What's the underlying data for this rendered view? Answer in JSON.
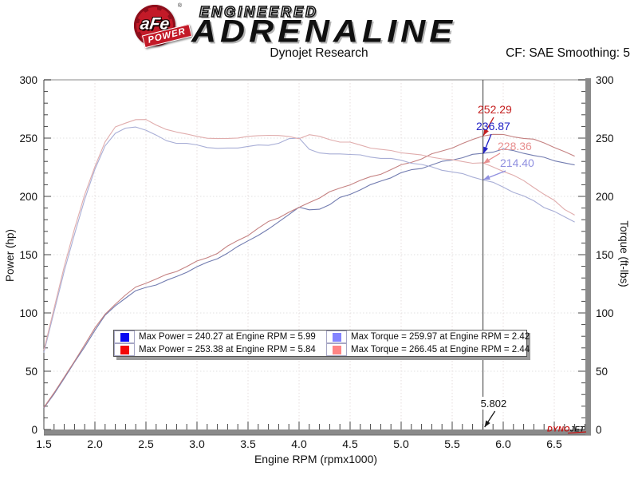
{
  "header": {
    "brand_top": "ENGINEERED",
    "brand_main": "ADRENALINE",
    "logo_text": "aFe",
    "logo_sub": "POWER",
    "reg_mark": "®",
    "chart_title": "Dynojet Research",
    "smoothing_label": "CF: SAE Smoothing: 5"
  },
  "axes": {
    "x_label": "Engine RPM (rpmx1000)",
    "y_left_label": "Power (hp)",
    "y_right_label": "Torque (ft-lbs)",
    "x_tick_labels": [
      "1.5",
      "2.0",
      "2.5",
      "3.0",
      "3.5",
      "4.0",
      "4.5",
      "5.0",
      "5.5",
      "6.0",
      "6.5"
    ],
    "y_tick_labels": [
      "0",
      "50",
      "100",
      "150",
      "200",
      "250",
      "300"
    ]
  },
  "legend": {
    "items": [
      {
        "color": "#0707f2",
        "label": "Max Power = 240.27 at Engine RPM = 5.99"
      },
      {
        "color": "#f20707",
        "label": "Max Power = 253.38 at Engine RPM = 5.84"
      },
      {
        "color": "#8484ff",
        "label": "Max Torque = 259.97 at Engine RPM = 2.42"
      },
      {
        "color": "#ff8484",
        "label": "Max Torque = 266.45 at Engine RPM = 2.44"
      }
    ]
  },
  "annotations": {
    "cursor_rpm": 5.802,
    "cursor_label": "5.802",
    "callouts": [
      {
        "text": "252.29",
        "value": 252.29,
        "color": "#c52020"
      },
      {
        "text": "236.87",
        "value": 236.87,
        "color": "#2020c5"
      },
      {
        "text": "228.36",
        "value": 228.36,
        "color": "#e89090"
      },
      {
        "text": "214.40",
        "value": 214.4,
        "color": "#9090e0"
      }
    ]
  },
  "watermark": {
    "red": "DYNO",
    "dark": "JET"
  },
  "chart_data": {
    "type": "line",
    "title": "Dynojet Research",
    "xlabel": "Engine RPM (rpmx1000)",
    "ylabel_left": "Power (hp)",
    "ylabel_right": "Torque (ft-lbs)",
    "xlim": [
      1.5,
      6.805
    ],
    "ylim": [
      0,
      300
    ],
    "x_start": 1.5,
    "x_step": 0.1,
    "grid": true,
    "series": [
      {
        "name": "power-blue",
        "unit": "hp",
        "color": "#727cb0",
        "values": [
          18.5,
          30.5,
          44,
          57.5,
          71.5,
          85,
          97.5,
          106.5,
          113,
          118.5,
          122,
          124.5,
          127.5,
          131,
          135.5,
          139.5,
          143,
          147,
          151.5,
          156.5,
          162,
          167,
          171.5,
          178,
          185,
          190.5,
          188,
          189.5,
          193,
          198.5,
          202,
          206,
          209.5,
          213,
          216.5,
          220,
          222.5,
          224.5,
          227,
          229.5,
          231.5,
          233.5,
          235.5,
          236.9,
          238.5,
          240.3,
          239,
          237.5,
          235,
          233,
          231,
          229,
          227
        ]
      },
      {
        "name": "power-red",
        "unit": "hp",
        "color": "#c58282",
        "values": [
          19,
          31.5,
          45,
          59,
          73,
          86.5,
          99,
          108,
          115,
          122,
          126,
          129,
          132.5,
          136,
          140,
          144,
          147.5,
          151.5,
          157,
          162,
          167,
          172.5,
          178,
          182,
          186.5,
          190,
          195,
          199,
          203.5,
          207,
          210.5,
          213.5,
          216.5,
          219.5,
          223,
          226.5,
          229.5,
          232.5,
          236,
          239,
          242,
          245,
          248.5,
          252.3,
          253.2,
          252.6,
          251.5,
          250,
          248.5,
          246,
          242.5,
          238,
          234.5
        ]
      },
      {
        "name": "torque-blue",
        "unit": "ft-lbs",
        "color": "#a8aed6",
        "values": [
          66,
          101,
          136,
          168,
          197,
          223,
          244,
          254,
          258,
          260,
          257,
          252,
          248,
          246,
          245,
          244,
          242.5,
          241,
          241,
          242,
          243,
          243.5,
          244,
          246,
          249,
          250,
          241,
          237,
          236,
          237,
          236,
          235,
          234,
          233,
          232,
          231,
          229,
          227,
          225,
          223,
          221,
          219,
          217,
          214.4,
          211.5,
          208,
          204,
          200,
          196,
          191,
          187,
          182,
          178
        ]
      },
      {
        "name": "torque-red",
        "unit": "ft-lbs",
        "color": "#e0acac",
        "values": [
          68,
          104,
          140,
          172,
          201,
          226,
          247,
          259,
          263,
          266.4,
          265.5,
          261,
          258,
          255,
          253,
          252,
          250,
          249,
          250,
          250.5,
          251,
          252,
          253,
          252,
          251,
          250,
          253,
          251,
          249,
          247,
          246,
          244,
          242,
          240,
          239,
          238,
          236.5,
          235,
          234,
          232.5,
          231,
          230,
          229,
          228.4,
          225,
          222,
          218,
          213,
          208,
          202,
          196,
          189,
          184
        ]
      }
    ],
    "max_annotations": [
      {
        "series": "power-blue",
        "max": 240.27,
        "at_rpm": 5.99
      },
      {
        "series": "power-red",
        "max": 253.38,
        "at_rpm": 5.84
      },
      {
        "series": "torque-blue",
        "max": 259.97,
        "at_rpm": 2.42
      },
      {
        "series": "torque-red",
        "max": 266.45,
        "at_rpm": 2.44
      }
    ],
    "cursor_readout": {
      "rpm": 5.802,
      "power_red": 252.29,
      "power_blue": 236.87,
      "torque_red": 228.36,
      "torque_blue": 214.4
    }
  }
}
